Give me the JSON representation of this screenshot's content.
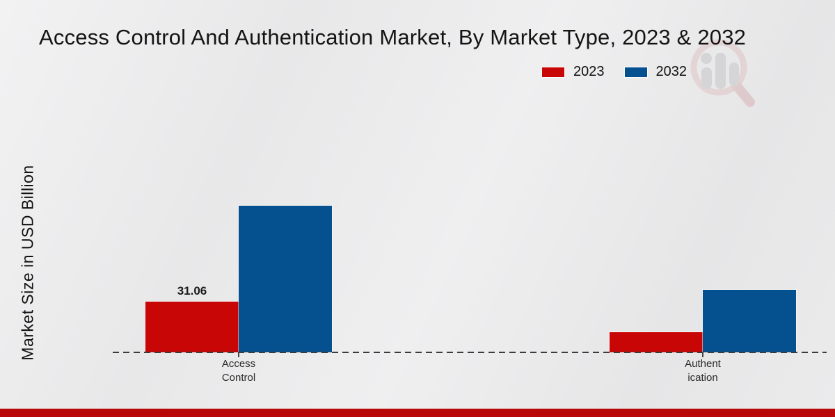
{
  "title": "Access Control And Authentication Market, By Market Type, 2023 & 2032",
  "ylabel": "Market Size in USD Billion",
  "legend": {
    "items": [
      {
        "label": "2023",
        "color": "#c90606"
      },
      {
        "label": "2032",
        "color": "#05508e"
      }
    ]
  },
  "colors": {
    "series_2023": "#c90606",
    "series_2032": "#05508e",
    "footer_band": "#b90808",
    "axis_dash": "#3b3b3b",
    "background": "#e9e9ea"
  },
  "watermark": {
    "icon": "magnifier-bar-chart-logo"
  },
  "chart_data": {
    "type": "bar",
    "title": "Access Control And Authentication Market, By Market Type, 2023 & 2032",
    "xlabel": "",
    "ylabel": "Market Size in USD Billion",
    "categories": [
      "Access Control",
      "Authentication"
    ],
    "category_display": [
      [
        "Access",
        "Control"
      ],
      [
        "Authent",
        "ication"
      ]
    ],
    "series": [
      {
        "name": "2023",
        "color": "#c90606",
        "values": [
          31.06,
          12.3
        ]
      },
      {
        "name": "2032",
        "color": "#05508e",
        "values": [
          89.6,
          38.3
        ]
      }
    ],
    "value_labels": [
      [
        "31.06",
        null
      ],
      [
        null,
        null
      ]
    ],
    "ylim": [
      0,
      120
    ],
    "grid": false,
    "legend_position": "top-right",
    "x_axis_style": "dashed-baseline"
  }
}
